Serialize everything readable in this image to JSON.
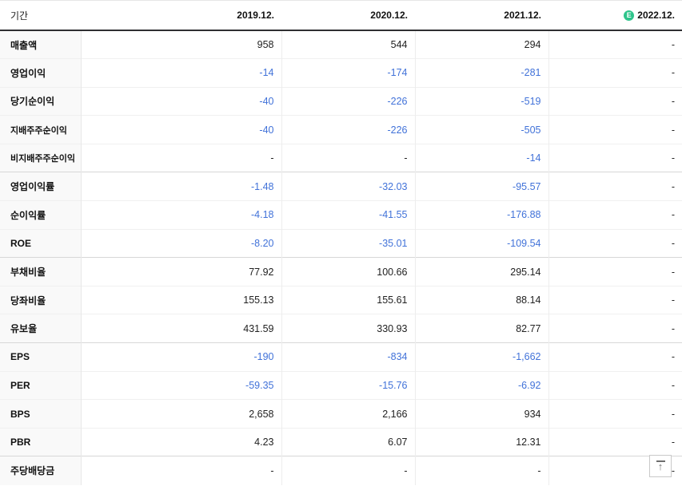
{
  "header": {
    "period_label": "기간",
    "columns": [
      "2019.12.",
      "2020.12.",
      "2021.12.",
      "2022.12."
    ],
    "estimate_icon": "E",
    "estimate_column_index": 3
  },
  "rows": [
    {
      "label": "매출액",
      "small": false,
      "group_end": false,
      "values": [
        "958",
        "544",
        "294",
        "-"
      ]
    },
    {
      "label": "영업이익",
      "small": false,
      "group_end": false,
      "values": [
        "-14",
        "-174",
        "-281",
        "-"
      ]
    },
    {
      "label": "당기순이익",
      "small": false,
      "group_end": false,
      "values": [
        "-40",
        "-226",
        "-519",
        "-"
      ]
    },
    {
      "label": "지배주주순이익",
      "small": true,
      "group_end": false,
      "values": [
        "-40",
        "-226",
        "-505",
        "-"
      ]
    },
    {
      "label": "비지배주주순이익",
      "small": true,
      "group_end": true,
      "values": [
        "-",
        "-",
        "-14",
        "-"
      ]
    },
    {
      "label": "영업이익률",
      "small": false,
      "group_end": false,
      "values": [
        "-1.48",
        "-32.03",
        "-95.57",
        "-"
      ]
    },
    {
      "label": "순이익률",
      "small": false,
      "group_end": false,
      "values": [
        "-4.18",
        "-41.55",
        "-176.88",
        "-"
      ]
    },
    {
      "label": "ROE",
      "small": false,
      "group_end": true,
      "values": [
        "-8.20",
        "-35.01",
        "-109.54",
        "-"
      ]
    },
    {
      "label": "부채비율",
      "small": false,
      "group_end": false,
      "values": [
        "77.92",
        "100.66",
        "295.14",
        "-"
      ]
    },
    {
      "label": "당좌비율",
      "small": false,
      "group_end": false,
      "values": [
        "155.13",
        "155.61",
        "88.14",
        "-"
      ]
    },
    {
      "label": "유보율",
      "small": false,
      "group_end": true,
      "values": [
        "431.59",
        "330.93",
        "82.77",
        "-"
      ]
    },
    {
      "label": "EPS",
      "small": false,
      "group_end": false,
      "values": [
        "-190",
        "-834",
        "-1,662",
        "-"
      ]
    },
    {
      "label": "PER",
      "small": false,
      "group_end": false,
      "values": [
        "-59.35",
        "-15.76",
        "-6.92",
        "-"
      ]
    },
    {
      "label": "BPS",
      "small": false,
      "group_end": false,
      "values": [
        "2,658",
        "2,166",
        "934",
        "-"
      ]
    },
    {
      "label": "PBR",
      "small": false,
      "group_end": true,
      "values": [
        "4.23",
        "6.07",
        "12.31",
        "-"
      ]
    },
    {
      "label": "주당배당금",
      "small": false,
      "group_end": false,
      "values": [
        "-",
        "-",
        "-",
        "-"
      ]
    }
  ],
  "colors": {
    "negative_value": "#4172d9",
    "estimate_badge": "#2ec48b",
    "header_border": "#2f2f32"
  },
  "icons": {
    "scroll_top": "↑"
  }
}
